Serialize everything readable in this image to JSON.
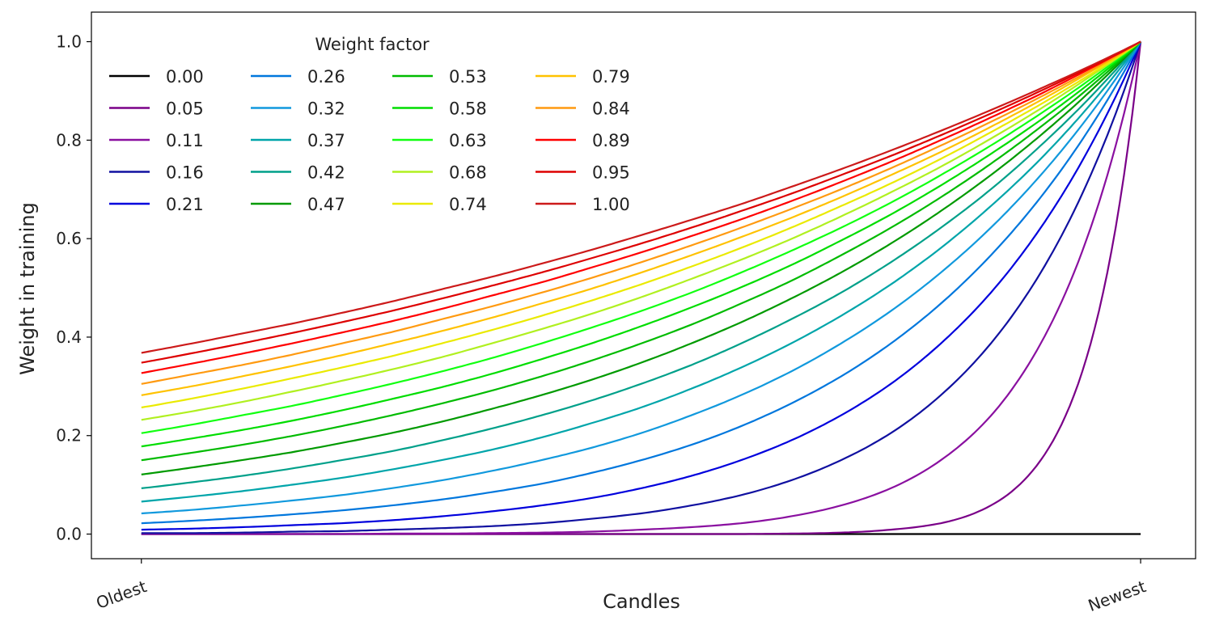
{
  "chart_data": {
    "type": "line",
    "title": "",
    "xlabel": "Candles",
    "ylabel": "Weight in training",
    "x_tick_labels": [
      "Oldest",
      "Newest"
    ],
    "x": [
      0,
      0.05,
      0.1,
      0.15,
      0.2,
      0.25,
      0.3,
      0.35,
      0.4,
      0.45,
      0.5,
      0.55,
      0.6,
      0.65,
      0.7,
      0.75,
      0.8,
      0.85,
      0.9,
      0.95,
      1
    ],
    "y_ticks": [
      "0.0",
      "0.2",
      "0.4",
      "0.6",
      "0.8",
      "1.0"
    ],
    "ylim": [
      -0.05,
      1.06
    ],
    "xlim": [
      -0.05,
      1.055
    ],
    "grid": false,
    "legend": {
      "title": "Weight factor",
      "placement": "top-left",
      "columns": 4
    },
    "series": [
      {
        "name": "0.00",
        "color": "#000000",
        "values": [
          0,
          0,
          0,
          0,
          0,
          0,
          0,
          0,
          0,
          0,
          0,
          0,
          0,
          0,
          0,
          0,
          0,
          0,
          0,
          0,
          0
        ]
      },
      {
        "name": "0.05",
        "color": "#7a0088",
        "values": [
          0,
          0,
          0,
          0,
          0,
          0,
          0,
          0,
          0,
          0,
          0,
          0,
          0,
          0.001,
          0.003,
          0.009,
          0.022,
          0.058,
          0.15,
          0.387,
          1
        ]
      },
      {
        "name": "0.11",
        "color": "#8a10a0",
        "values": [
          0,
          0,
          0,
          0,
          0,
          0.001,
          0.001,
          0.002,
          0.003,
          0.005,
          0.009,
          0.014,
          0.022,
          0.036,
          0.058,
          0.093,
          0.15,
          0.24,
          0.387,
          0.622,
          1
        ]
      },
      {
        "name": "0.16",
        "color": "#1010a0",
        "values": [
          0.002,
          0.002,
          0.003,
          0.005,
          0.006,
          0.009,
          0.012,
          0.016,
          0.022,
          0.031,
          0.042,
          0.058,
          0.079,
          0.109,
          0.15,
          0.205,
          0.282,
          0.387,
          0.531,
          0.729,
          1
        ]
      },
      {
        "name": "0.21",
        "color": "#0000dd",
        "values": [
          0.009,
          0.011,
          0.014,
          0.018,
          0.022,
          0.028,
          0.036,
          0.046,
          0.058,
          0.073,
          0.093,
          0.118,
          0.15,
          0.19,
          0.241,
          0.305,
          0.387,
          0.49,
          0.622,
          0.789,
          1
        ]
      },
      {
        "name": "0.26",
        "color": "#0077dd",
        "values": [
          0.022,
          0.027,
          0.033,
          0.04,
          0.048,
          0.058,
          0.07,
          0.085,
          0.102,
          0.124,
          0.15,
          0.181,
          0.219,
          0.265,
          0.32,
          0.387,
          0.468,
          0.566,
          0.684,
          0.827,
          1
        ]
      },
      {
        "name": "0.32",
        "color": "#1199dd",
        "values": [
          0.042,
          0.049,
          0.058,
          0.068,
          0.079,
          0.093,
          0.109,
          0.128,
          0.15,
          0.175,
          0.205,
          0.241,
          0.282,
          0.33,
          0.387,
          0.453,
          0.531,
          0.622,
          0.729,
          0.854,
          1
        ]
      },
      {
        "name": "0.37",
        "color": "#00a5aa",
        "values": [
          0.066,
          0.076,
          0.087,
          0.1,
          0.114,
          0.131,
          0.15,
          0.171,
          0.196,
          0.225,
          0.257,
          0.295,
          0.338,
          0.387,
          0.443,
          0.507,
          0.581,
          0.666,
          0.762,
          0.873,
          1
        ]
      },
      {
        "name": "0.42",
        "color": "#00a08a",
        "values": [
          0.093,
          0.105,
          0.118,
          0.133,
          0.15,
          0.168,
          0.19,
          0.214,
          0.241,
          0.271,
          0.305,
          0.343,
          0.387,
          0.436,
          0.49,
          0.552,
          0.622,
          0.7,
          0.789,
          0.888,
          1
        ]
      },
      {
        "name": "0.47",
        "color": "#009a00",
        "values": [
          0.121,
          0.135,
          0.15,
          0.166,
          0.185,
          0.205,
          0.228,
          0.254,
          0.282,
          0.313,
          0.348,
          0.387,
          0.43,
          0.478,
          0.531,
          0.59,
          0.656,
          0.729,
          0.81,
          0.9,
          1
        ]
      },
      {
        "name": "0.53",
        "color": "#00bb00",
        "values": [
          0.15,
          0.165,
          0.181,
          0.199,
          0.219,
          0.241,
          0.265,
          0.291,
          0.32,
          0.352,
          0.387,
          0.425,
          0.468,
          0.514,
          0.566,
          0.622,
          0.684,
          0.752,
          0.827,
          0.909,
          1
        ]
      },
      {
        "name": "0.58",
        "color": "#00dd00",
        "values": [
          0.178,
          0.194,
          0.211,
          0.23,
          0.251,
          0.274,
          0.298,
          0.325,
          0.355,
          0.387,
          0.422,
          0.46,
          0.501,
          0.546,
          0.596,
          0.649,
          0.708,
          0.772,
          0.841,
          0.917,
          1
        ]
      },
      {
        "name": "0.63",
        "color": "#11ff11",
        "values": [
          0.205,
          0.222,
          0.241,
          0.26,
          0.282,
          0.305,
          0.33,
          0.357,
          0.387,
          0.419,
          0.453,
          0.49,
          0.531,
          0.575,
          0.622,
          0.673,
          0.729,
          0.789,
          0.854,
          0.924,
          1
        ]
      },
      {
        "name": "0.68",
        "color": "#b0f020",
        "values": [
          0.232,
          0.249,
          0.268,
          0.289,
          0.311,
          0.334,
          0.359,
          0.387,
          0.416,
          0.447,
          0.481,
          0.518,
          0.557,
          0.599,
          0.645,
          0.694,
          0.746,
          0.803,
          0.864,
          0.93,
          1
        ]
      },
      {
        "name": "0.74",
        "color": "#eaea00",
        "values": [
          0.257,
          0.275,
          0.295,
          0.316,
          0.338,
          0.361,
          0.387,
          0.414,
          0.443,
          0.474,
          0.507,
          0.543,
          0.581,
          0.622,
          0.666,
          0.712,
          0.762,
          0.816,
          0.873,
          0.934,
          1
        ]
      },
      {
        "name": "0.79",
        "color": "#ffc200",
        "values": [
          0.282,
          0.3,
          0.32,
          0.341,
          0.363,
          0.387,
          0.412,
          0.439,
          0.468,
          0.498,
          0.531,
          0.566,
          0.603,
          0.642,
          0.684,
          0.729,
          0.776,
          0.827,
          0.881,
          0.939,
          1
        ]
      },
      {
        "name": "0.84",
        "color": "#ff9a10",
        "values": [
          0.305,
          0.324,
          0.343,
          0.364,
          0.387,
          0.41,
          0.436,
          0.462,
          0.49,
          0.52,
          0.552,
          0.586,
          0.622,
          0.66,
          0.7,
          0.743,
          0.789,
          0.837,
          0.888,
          0.942,
          1
        ]
      },
      {
        "name": "0.89",
        "color": "#ff0000",
        "values": [
          0.327,
          0.346,
          0.366,
          0.387,
          0.409,
          0.432,
          0.457,
          0.484,
          0.511,
          0.541,
          0.572,
          0.605,
          0.639,
          0.676,
          0.715,
          0.756,
          0.8,
          0.846,
          0.894,
          0.946,
          1
        ]
      },
      {
        "name": "0.95",
        "color": "#dd0000",
        "values": [
          0.348,
          0.367,
          0.387,
          0.408,
          0.43,
          0.453,
          0.478,
          0.504,
          0.531,
          0.56,
          0.59,
          0.622,
          0.656,
          0.691,
          0.729,
          0.768,
          0.81,
          0.854,
          0.9,
          0.949,
          1
        ]
      },
      {
        "name": "1.00",
        "color": "#cc1a1a",
        "values": [
          0.368,
          0.387,
          0.407,
          0.427,
          0.449,
          0.472,
          0.497,
          0.522,
          0.549,
          0.577,
          0.607,
          0.638,
          0.67,
          0.705,
          0.741,
          0.779,
          0.819,
          0.861,
          0.905,
          0.951,
          1
        ]
      }
    ]
  }
}
